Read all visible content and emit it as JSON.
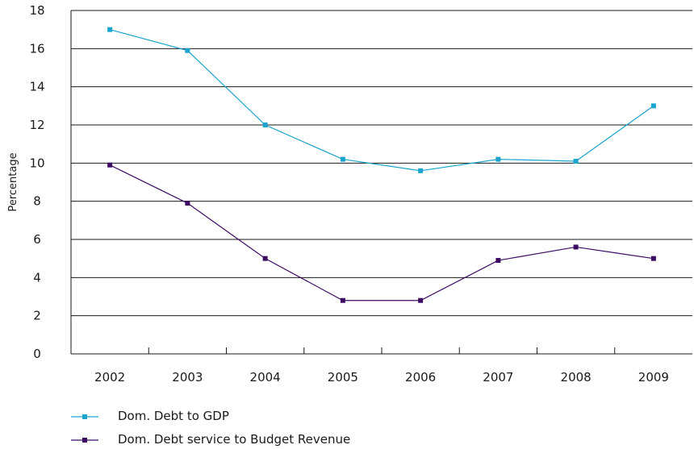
{
  "chart_data": {
    "type": "line",
    "title": "",
    "xlabel": "",
    "ylabel": "Percentage",
    "ylim": [
      0,
      18
    ],
    "yticks": [
      0,
      2,
      4,
      6,
      8,
      10,
      12,
      14,
      16,
      18
    ],
    "grid": "horizontal",
    "legend_position": "bottom-left",
    "categories": [
      "2002",
      "2003",
      "2004",
      "2005",
      "2006",
      "2007",
      "2008",
      "2009"
    ],
    "series": [
      {
        "name": "Dom. Debt to GDP",
        "color": "#1aa3cc",
        "marker": "square",
        "values": [
          17.0,
          15.9,
          12.0,
          10.2,
          9.6,
          10.2,
          10.1,
          13.0
        ]
      },
      {
        "name": "Dom. Debt service to Budget Revenue",
        "color": "#3d0a63",
        "marker": "square",
        "values": [
          9.9,
          7.9,
          5.0,
          2.8,
          2.8,
          4.9,
          5.6,
          5.0
        ]
      }
    ]
  }
}
